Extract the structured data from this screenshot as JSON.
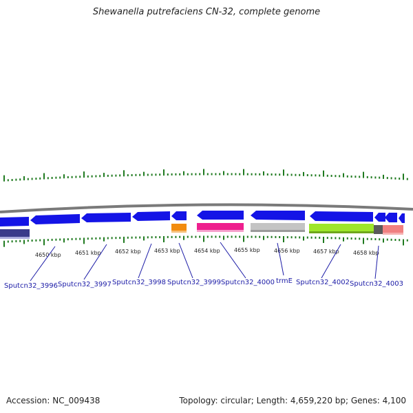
{
  "title": "Shewanella putrefaciens CN-32, complete genome",
  "footer": {
    "accession": "Accession: NC_009438",
    "info": "Topology: circular; Length: 4,659,220 bp; Genes: 4,100"
  },
  "chart_data": {
    "type": "genome-map",
    "kbp_labels": [
      "4650 kbp",
      "4651 kbp",
      "4652 kbp",
      "4653 kbp",
      "4654 kbp",
      "4655 kbp",
      "4656 kbp",
      "4657 kbp",
      "4658 kbp"
    ],
    "gene_labels": [
      "Sputcn32_3996",
      "Sputcn32_3997",
      "Sputcn32_3998",
      "Sputcn32_3999",
      "Sputcn32_4000",
      "trmE",
      "Sputcn32_4002",
      "Sputcn32_4003"
    ],
    "colors": {
      "gene": "#1414e6",
      "backbone": "#7a7a7a",
      "tick": "#1f7a1f",
      "orange": "#f28c0f",
      "pink": "#ee1f8e",
      "gray": "#c4c4c4",
      "lime": "#9ee62a",
      "darkgray": "#5a5a5a",
      "salmon": "#f08080",
      "navy": "#3a3a8a"
    }
  }
}
